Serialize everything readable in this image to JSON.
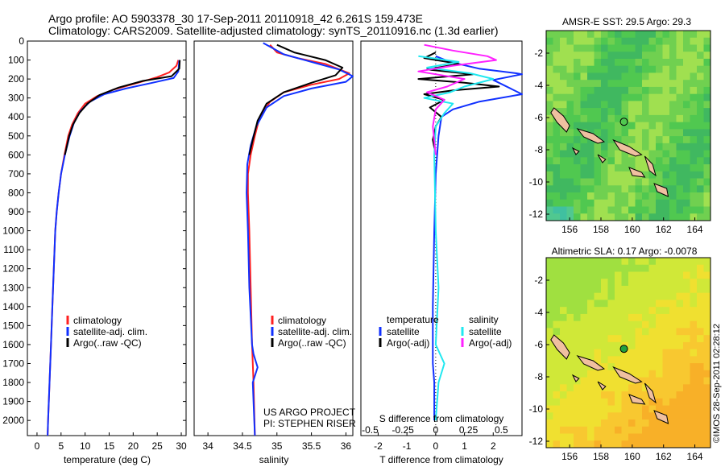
{
  "header": {
    "title_line1": "Argo profile: AO 5903378_30 17-Sep-2011 20110918_42 6.261S 159.473E",
    "title_line2": "Climatology: CARS2009. Satellite-adjusted climatology: synTS_20110916.nc (1.3d earlier)"
  },
  "footer": {
    "credit": "©IMOS 28-Sep-2011 02:28:12",
    "project_line1": "US ARGO PROJECT",
    "project_line2": "PI: STEPHEN RISER"
  },
  "colors": {
    "climatology": "#ff2020",
    "satellite": "#1030ff",
    "argo": "#000000",
    "sal_satellite": "#20e8f0",
    "sal_argo": "#ff20ff",
    "map_land": "#f0c0a0",
    "map_ocean_sst": "#40c060",
    "map_ocean_sla": "#c0e040",
    "float_marker": "#20a040"
  },
  "chart_data": [
    {
      "id": "temperature",
      "type": "line",
      "xlabel": "temperature (deg C)",
      "ylabel": "",
      "xlim": [
        -2,
        31
      ],
      "ylim": [
        2080,
        0
      ],
      "xticks": [
        0,
        5,
        10,
        15,
        20,
        25,
        30
      ],
      "yticks": [
        0,
        100,
        200,
        300,
        400,
        500,
        600,
        700,
        800,
        900,
        1000,
        1100,
        1200,
        1300,
        1400,
        1500,
        1600,
        1700,
        1800,
        1900,
        2000
      ],
      "legend": [
        "climatology",
        "satellite-adj. clim.",
        "Argo(..raw -QC)"
      ],
      "series": [
        {
          "name": "climatology",
          "color": "#ff2020",
          "points": [
            [
              29.4,
              100
            ],
            [
              29.0,
              130
            ],
            [
              27.5,
              165
            ],
            [
              25.0,
              190
            ],
            [
              21.0,
              220
            ],
            [
              16.0,
              255
            ],
            [
              12.5,
              290
            ],
            [
              10.0,
              330
            ],
            [
              8.5,
              380
            ],
            [
              7.3,
              440
            ],
            [
              6.5,
              500
            ],
            [
              5.7,
              600
            ],
            [
              5.0,
              700
            ],
            [
              4.5,
              800
            ],
            [
              4.1,
              900
            ],
            [
              3.8,
              1000
            ],
            [
              3.5,
              1200
            ],
            [
              3.2,
              1400
            ],
            [
              2.9,
              1600
            ],
            [
              2.6,
              1800
            ],
            [
              2.3,
              2000
            ],
            [
              2.2,
              2080
            ]
          ]
        },
        {
          "name": "satellite-adj. clim.",
          "color": "#1030ff",
          "points": [
            [
              29.6,
              100
            ],
            [
              29.4,
              160
            ],
            [
              28.4,
              195
            ],
            [
              24.0,
              220
            ],
            [
              18.5,
              250
            ],
            [
              14.0,
              280
            ],
            [
              11.0,
              320
            ],
            [
              9.0,
              370
            ],
            [
              7.7,
              430
            ],
            [
              6.8,
              500
            ],
            [
              5.8,
              600
            ],
            [
              5.0,
              700
            ],
            [
              4.5,
              800
            ],
            [
              4.1,
              900
            ],
            [
              3.8,
              1000
            ],
            [
              3.5,
              1200
            ],
            [
              3.2,
              1400
            ],
            [
              2.9,
              1600
            ],
            [
              2.6,
              1800
            ],
            [
              2.3,
              2000
            ],
            [
              2.2,
              2080
            ]
          ]
        },
        {
          "name": "Argo(..raw -QC)",
          "color": "#000000",
          "points": [
            [
              29.7,
              100
            ],
            [
              29.6,
              145
            ],
            [
              28.0,
              185
            ],
            [
              22.0,
              210
            ],
            [
              17.0,
              245
            ],
            [
              13.0,
              285
            ],
            [
              10.5,
              330
            ],
            [
              8.8,
              380
            ],
            [
              7.5,
              440
            ],
            [
              6.7,
              500
            ],
            [
              5.8,
              600
            ]
          ]
        }
      ]
    },
    {
      "id": "salinity",
      "type": "line",
      "xlabel": "salinity",
      "ylabel": "",
      "xlim": [
        33.8,
        36.1
      ],
      "ylim": [
        2080,
        0
      ],
      "xticks": [
        34,
        34.5,
        35,
        35.5,
        36
      ],
      "legend": [
        "climatology",
        "satellite-adj. clim.",
        "Argo(..raw -QC)"
      ],
      "series": [
        {
          "name": "climatology",
          "color": "#ff2020",
          "points": [
            [
              34.9,
              20
            ],
            [
              35.0,
              60
            ],
            [
              35.3,
              90
            ],
            [
              35.7,
              120
            ],
            [
              36.05,
              170
            ],
            [
              35.9,
              200
            ],
            [
              35.5,
              230
            ],
            [
              35.1,
              270
            ],
            [
              34.9,
              320
            ],
            [
              34.75,
              400
            ],
            [
              34.68,
              500
            ],
            [
              34.62,
              600
            ],
            [
              34.58,
              700
            ],
            [
              34.58,
              800
            ],
            [
              34.6,
              1000
            ],
            [
              34.62,
              1300
            ],
            [
              34.64,
              1600
            ],
            [
              34.66,
              1800
            ],
            [
              34.68,
              2080
            ]
          ]
        },
        {
          "name": "satellite-adj. clim.",
          "color": "#1030ff",
          "points": [
            [
              34.8,
              10
            ],
            [
              34.95,
              40
            ],
            [
              35.1,
              70
            ],
            [
              35.5,
              110
            ],
            [
              35.9,
              150
            ],
            [
              36.1,
              185
            ],
            [
              36.0,
              215
            ],
            [
              35.5,
              250
            ],
            [
              35.1,
              290
            ],
            [
              34.85,
              350
            ],
            [
              34.7,
              450
            ],
            [
              34.62,
              550
            ],
            [
              34.57,
              650
            ],
            [
              34.56,
              800
            ],
            [
              34.58,
              1000
            ],
            [
              34.6,
              1300
            ],
            [
              34.64,
              1600
            ],
            [
              34.66,
              1650
            ],
            [
              34.72,
              1720
            ],
            [
              34.65,
              1800
            ],
            [
              34.66,
              1900
            ],
            [
              34.68,
              2080
            ]
          ]
        },
        {
          "name": "Argo(..raw -QC)",
          "color": "#000000",
          "points": [
            [
              35.0,
              20
            ],
            [
              35.25,
              60
            ],
            [
              35.7,
              100
            ],
            [
              35.95,
              140
            ],
            [
              35.85,
              180
            ],
            [
              35.5,
              220
            ],
            [
              35.1,
              270
            ],
            [
              34.85,
              330
            ],
            [
              34.72,
              420
            ],
            [
              34.65,
              520
            ],
            [
              34.6,
              600
            ]
          ]
        }
      ]
    },
    {
      "id": "difference",
      "type": "line",
      "xlabel": "T difference from climatology",
      "xlabel_top": "S difference from climatology",
      "xlim": [
        -2.6,
        3.0
      ],
      "ylim": [
        2080,
        0
      ],
      "xticks": [
        -2,
        -1,
        0,
        1,
        2
      ],
      "xticks_top": [
        -0.5,
        -0.25,
        0,
        0.25,
        0.5
      ],
      "legend": [
        "temperature",
        "satellite",
        "Argo(-adj)",
        "salinity",
        "satellite",
        "Argo(-adj)"
      ],
      "series": [
        {
          "name": "T satellite",
          "color": "#1030ff",
          "points": [
            [
              0.0,
              80
            ],
            [
              0.5,
              110
            ],
            [
              1.5,
              145
            ],
            [
              2.8,
              170
            ],
            [
              3.0,
              175
            ],
            [
              2.0,
              205
            ],
            [
              3.0,
              280
            ],
            [
              1.5,
              320
            ],
            [
              0.6,
              360
            ],
            [
              0.2,
              400
            ],
            [
              0.1,
              500
            ],
            [
              0.0,
              700
            ],
            [
              -0.05,
              1000
            ],
            [
              -0.1,
              1400
            ],
            [
              -0.1,
              1700
            ],
            [
              -0.05,
              1800
            ],
            [
              -0.05,
              2000
            ]
          ]
        },
        {
          "name": "T Argo(-adj)",
          "color": "#000000",
          "points": [
            [
              0.0,
              60
            ],
            [
              -0.4,
              90
            ],
            [
              0.8,
              120
            ],
            [
              -0.3,
              150
            ],
            [
              1.3,
              175
            ],
            [
              -0.6,
              200
            ],
            [
              1.0,
              220
            ],
            [
              2.2,
              240
            ],
            [
              0.6,
              260
            ],
            [
              -0.4,
              280
            ],
            [
              0.3,
              310
            ],
            [
              -0.2,
              350
            ],
            [
              0.2,
              400
            ],
            [
              0.0,
              450
            ],
            [
              -0.1,
              520
            ],
            [
              0.0,
              600
            ]
          ]
        },
        {
          "name": "S satellite",
          "color": "#20e8f0",
          "points": [
            [
              -0.6,
              80
            ],
            [
              0.8,
              110
            ],
            [
              -0.3,
              140
            ],
            [
              1.2,
              170
            ],
            [
              2.0,
              200
            ],
            [
              1.0,
              240
            ],
            [
              0.5,
              270
            ],
            [
              -0.4,
              300
            ],
            [
              0.6,
              330
            ],
            [
              0.3,
              380
            ],
            [
              0.0,
              450
            ],
            [
              -0.05,
              600
            ],
            [
              0.0,
              1000
            ],
            [
              0.1,
              1300
            ],
            [
              0.0,
              1600
            ],
            [
              0.3,
              1700
            ],
            [
              0.1,
              1800
            ],
            [
              0.0,
              2000
            ]
          ]
        },
        {
          "name": "S Argo(-adj)",
          "color": "#ff20ff",
          "points": [
            [
              -0.4,
              20
            ],
            [
              0.6,
              50
            ],
            [
              1.8,
              80
            ],
            [
              2.1,
              100
            ],
            [
              0.6,
              130
            ],
            [
              -0.6,
              160
            ],
            [
              1.0,
              200
            ],
            [
              0.4,
              240
            ],
            [
              -0.3,
              270
            ],
            [
              0.3,
              310
            ],
            [
              0.0,
              360
            ],
            [
              -0.1,
              450
            ],
            [
              0.0,
              600
            ]
          ]
        }
      ]
    },
    {
      "id": "sst_map",
      "type": "heatmap",
      "title": "AMSR-E SST: 29.5 Argo: 29.3",
      "xticks": [
        156,
        158,
        160,
        162,
        164
      ],
      "yticks": [
        -2,
        -4,
        -6,
        -8,
        -10,
        -12
      ],
      "xlim": [
        154.5,
        165
      ],
      "ylim": [
        -12.4,
        -0.6
      ],
      "float_position": [
        159.47,
        -6.26
      ]
    },
    {
      "id": "sla_map",
      "type": "heatmap",
      "title": "Altimetric SLA: 0.17 Argo: -0.0078",
      "xticks": [
        156,
        158,
        160,
        162,
        164
      ],
      "yticks": [
        -2,
        -4,
        -6,
        -8,
        -10,
        -12
      ],
      "xlim": [
        154.5,
        165
      ],
      "ylim": [
        -12.4,
        -0.6
      ],
      "float_position": [
        159.47,
        -6.26
      ]
    }
  ],
  "legend_temp": {
    "climatology": "climatology",
    "satellite": "satellite-adj. clim.",
    "argo": "Argo(..raw -QC)"
  },
  "legend_sal": {
    "climatology": "climatology",
    "satellite": "satellite-adj. clim.",
    "argo": "Argo(..raw -QC)"
  },
  "legend_diff": {
    "temperature": "temperature",
    "t_satellite": "satellite",
    "t_argo": "Argo(-adj)",
    "salinity": "salinity",
    "s_satellite": "satellite",
    "s_argo": "Argo(-adj)"
  }
}
